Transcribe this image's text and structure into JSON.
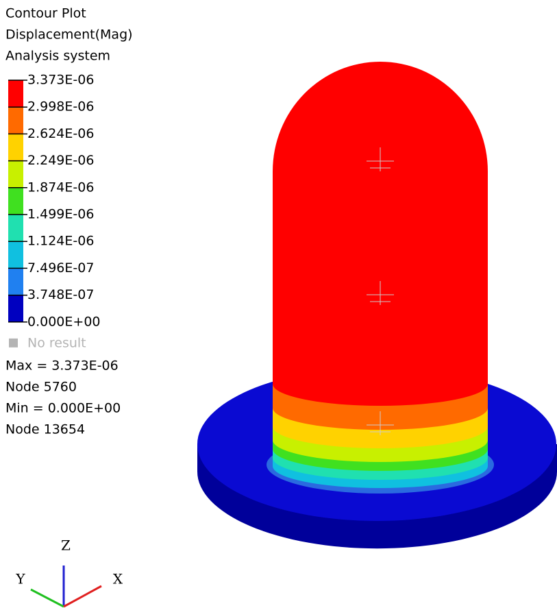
{
  "legend": {
    "title": [
      "Contour Plot",
      "Displacement(Mag)",
      "Analysis system"
    ],
    "labels": [
      "3.373E-06",
      "2.998E-06",
      "2.624E-06",
      "2.249E-06",
      "1.874E-06",
      "1.499E-06",
      "1.124E-06",
      "7.496E-07",
      "3.748E-07",
      "0.000E+00"
    ],
    "colors": [
      "#ff0000",
      "#ff6a00",
      "#ffd200",
      "#c8f000",
      "#40e020",
      "#20e0b0",
      "#10c0e0",
      "#2080f0",
      "#0000c0"
    ],
    "no_result": "No result",
    "stats": [
      "Max = 3.373E-06",
      "Node 5760",
      "Min = 0.000E+00",
      "Node 13654"
    ]
  },
  "triad": {
    "z": "Z",
    "y": "Y",
    "x": "X"
  }
}
